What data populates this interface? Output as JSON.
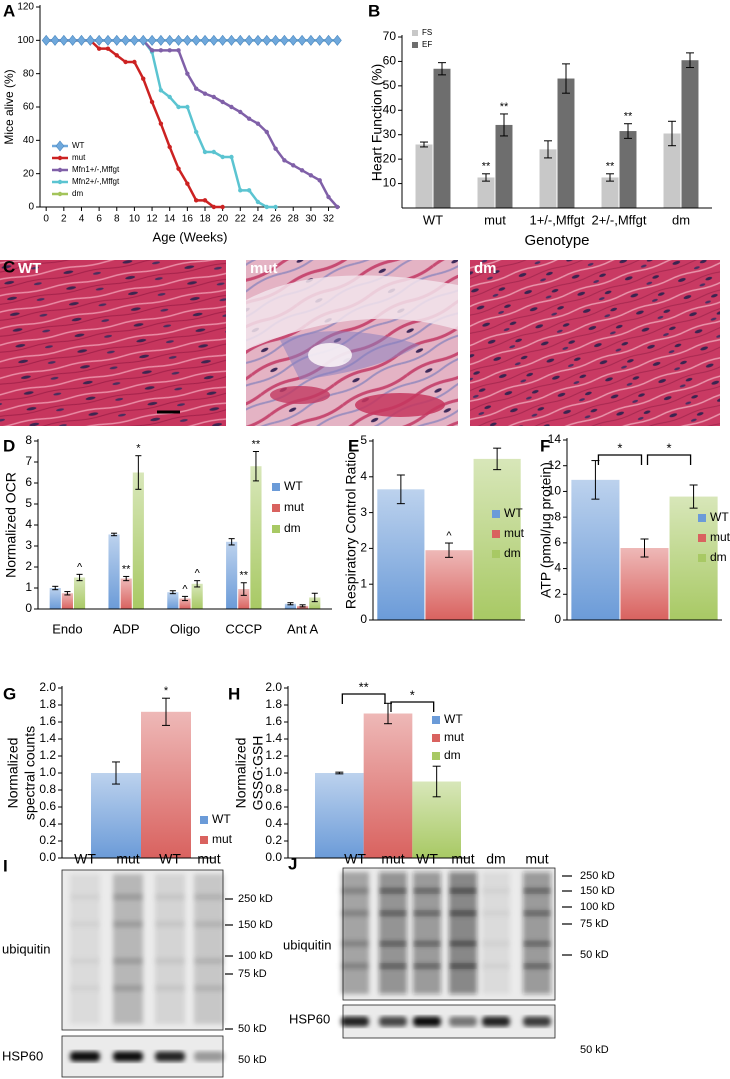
{
  "chart_data": [
    {
      "panel": "A",
      "type": "line",
      "ylabel": "Mice alive (%)",
      "xlabel": "Age (Weeks)",
      "x": [
        0,
        1,
        2,
        3,
        4,
        5,
        6,
        7,
        8,
        9,
        10,
        11,
        12,
        13,
        14,
        15,
        16,
        17,
        18,
        19,
        20,
        21,
        22,
        23,
        24,
        25,
        26,
        27,
        28,
        29,
        30,
        31,
        32,
        33
      ],
      "xlim": [
        -0.7,
        33.3
      ],
      "xticks": [
        0,
        2,
        4,
        6,
        8,
        10,
        12,
        14,
        16,
        18,
        20,
        22,
        24,
        26,
        28,
        30,
        32
      ],
      "ylim": [
        0,
        120
      ],
      "yticks": [
        0,
        20,
        40,
        60,
        80,
        100,
        120
      ],
      "series": [
        {
          "name": "WT",
          "color": "#6fa8dc",
          "marker": "diamond",
          "values": [
            100,
            100,
            100,
            100,
            100,
            100,
            100,
            100,
            100,
            100,
            100,
            100,
            100,
            100,
            100,
            100,
            100,
            100,
            100,
            100,
            100,
            100,
            100,
            100,
            100,
            100,
            100,
            100,
            100,
            100,
            100,
            100,
            100,
            100
          ]
        },
        {
          "name": "mut",
          "color": "#cc2222",
          "marker": "circle",
          "values": [
            100,
            100,
            100,
            100,
            100,
            100,
            95,
            95,
            91,
            87,
            87,
            77,
            63,
            50,
            36,
            23,
            14,
            4,
            4,
            0,
            0,
            null,
            null,
            null,
            null,
            null,
            null,
            null,
            null,
            null,
            null,
            null,
            null,
            null
          ]
        },
        {
          "name": "Mfn1+/-,Mffgt",
          "color": "#8060a8",
          "marker": "circle",
          "values": [
            100,
            100,
            100,
            100,
            100,
            100,
            100,
            100,
            100,
            100,
            100,
            100,
            94,
            94,
            94,
            94,
            80,
            71,
            68,
            66,
            63,
            60,
            57,
            53,
            50,
            45,
            35,
            28,
            25,
            22,
            19,
            16,
            6,
            0
          ]
        },
        {
          "name": "Mfn2+/-,Mffgt",
          "color": "#5bc4d1",
          "marker": "circle",
          "values": [
            100,
            100,
            100,
            100,
            100,
            100,
            100,
            100,
            100,
            100,
            100,
            100,
            93,
            70,
            66,
            60,
            60,
            45,
            33,
            33,
            30,
            30,
            10,
            10,
            3,
            0,
            0,
            null,
            null,
            null,
            null,
            null,
            null,
            null
          ]
        },
        {
          "name": "dm",
          "color": "#a3c45a",
          "marker": "circle",
          "values": [
            100,
            100,
            100,
            100,
            100,
            100,
            100,
            100,
            100,
            100,
            100,
            100,
            100,
            100,
            100,
            100,
            100,
            100,
            100,
            100,
            100,
            100,
            100,
            100,
            100,
            100,
            100,
            100,
            100,
            100,
            100,
            100,
            100,
            100
          ]
        }
      ]
    },
    {
      "panel": "B",
      "type": "bar",
      "ylabel": "Heart Function (%)",
      "xlabel": "Genotype",
      "categories": [
        "WT",
        "mut",
        "1+/-,Mffgt",
        "2+/-,Mffgt",
        "dm"
      ],
      "ylim": [
        0,
        70
      ],
      "yticks": [
        10,
        20,
        30,
        40,
        50,
        60,
        70
      ],
      "series": [
        {
          "name": "FS",
          "color": "#c8c8c8",
          "values": [
            26,
            12.5,
            24,
            12.5,
            30.5
          ],
          "errors": [
            1,
            1.5,
            3.5,
            1.5,
            5
          ],
          "annotations": [
            null,
            "**",
            null,
            "**",
            null
          ]
        },
        {
          "name": "EF",
          "color": "#6e6e6e",
          "values": [
            57,
            34,
            53,
            31.5,
            60.5
          ],
          "errors": [
            2.5,
            4.5,
            6,
            3,
            3
          ],
          "annotations": [
            null,
            "**",
            null,
            "**",
            null
          ]
        }
      ]
    },
    {
      "panel": "D",
      "type": "bar",
      "ylabel": "Normalized OCR",
      "categories": [
        "Endo",
        "ADP",
        "Oligo",
        "CCCP",
        "Ant A"
      ],
      "ylim": [
        0,
        8
      ],
      "yticks": [
        0,
        1,
        2,
        3,
        4,
        5,
        6,
        7,
        8
      ],
      "series": [
        {
          "name": "WT",
          "color": "#6b9bd8",
          "values": [
            1.0,
            3.55,
            0.8,
            3.2,
            0.25
          ],
          "errors": [
            0.08,
            0.06,
            0.07,
            0.15,
            0.05
          ]
        },
        {
          "name": "mut",
          "color": "#d9625f",
          "values": [
            0.75,
            1.45,
            0.5,
            0.95,
            0.15
          ],
          "errors": [
            0.08,
            0.1,
            0.1,
            0.3,
            0.05
          ],
          "annotations": [
            null,
            "**",
            "^",
            "**",
            null
          ]
        },
        {
          "name": "dm",
          "color": "#a8c964",
          "values": [
            1.5,
            6.5,
            1.2,
            6.8,
            0.55
          ],
          "errors": [
            0.15,
            0.8,
            0.15,
            0.7,
            0.2
          ],
          "annotations": [
            "^",
            "*",
            "^",
            "**",
            null
          ]
        }
      ]
    },
    {
      "panel": "E",
      "type": "bar",
      "ylabel": "Respiratory Control Ratio",
      "ylim": [
        0,
        5
      ],
      "yticks": [
        0,
        1,
        2,
        3,
        4,
        5
      ],
      "series": [
        {
          "name": "WT",
          "color": "#6b9bd8",
          "values": [
            3.65
          ],
          "errors": [
            0.4
          ]
        },
        {
          "name": "mut",
          "color": "#d9625f",
          "values": [
            1.95
          ],
          "errors": [
            0.2
          ],
          "annotations": [
            "^"
          ]
        },
        {
          "name": "dm",
          "color": "#a8c964",
          "values": [
            4.5
          ],
          "errors": [
            0.3
          ]
        }
      ]
    },
    {
      "panel": "F",
      "type": "bar",
      "ylabel": "ATP (pmol/μg protein)",
      "ylim": [
        0,
        14
      ],
      "yticks": [
        0,
        2,
        4,
        6,
        8,
        10,
        12,
        14
      ],
      "series": [
        {
          "name": "WT",
          "color": "#6b9bd8",
          "values": [
            10.9
          ],
          "errors": [
            1.5
          ]
        },
        {
          "name": "mut",
          "color": "#d9625f",
          "values": [
            5.6
          ],
          "errors": [
            0.7
          ]
        },
        {
          "name": "dm",
          "color": "#a8c964",
          "values": [
            9.6
          ],
          "errors": [
            0.9
          ]
        }
      ],
      "brackets": [
        {
          "between": [
            "WT",
            "mut"
          ],
          "label": "*"
        },
        {
          "between": [
            "mut",
            "dm"
          ],
          "label": "*"
        }
      ]
    },
    {
      "panel": "G",
      "type": "bar",
      "ylabel": [
        "Normalized",
        "spectral counts"
      ],
      "ylim": [
        0,
        2
      ],
      "yticks": [
        {
          "value": 0,
          "label": "0.0"
        },
        0.2,
        0.4,
        0.6,
        0.8,
        {
          "value": 1,
          "label": "1.0"
        },
        1.2,
        1.4,
        1.6,
        1.8,
        {
          "value": 2,
          "label": "2.0"
        }
      ],
      "series": [
        {
          "name": "WT",
          "color": "#6b9bd8",
          "values": [
            1.0
          ],
          "errors": [
            0.13
          ]
        },
        {
          "name": "mut",
          "color": "#d9625f",
          "values": [
            1.72
          ],
          "errors": [
            0.16
          ],
          "annotations": [
            "*"
          ]
        }
      ]
    },
    {
      "panel": "H",
      "type": "bar",
      "ylabel": [
        "Normalized",
        "GSSG:GSH"
      ],
      "ylim": [
        0,
        2
      ],
      "yticks": [
        {
          "value": 0,
          "label": "0.0"
        },
        0.2,
        0.4,
        0.6,
        0.8,
        {
          "value": 1,
          "label": "1.0"
        },
        1.2,
        1.4,
        1.6,
        1.8,
        {
          "value": 2,
          "label": "2.0"
        }
      ],
      "series": [
        {
          "name": "WT",
          "color": "#6b9bd8",
          "values": [
            1.0
          ],
          "errors": [
            0.01
          ]
        },
        {
          "name": "mut",
          "color": "#d9625f",
          "values": [
            1.7
          ],
          "errors": [
            0.12
          ]
        },
        {
          "name": "dm",
          "color": "#a8c964",
          "values": [
            0.9
          ],
          "errors": [
            0.18
          ]
        }
      ],
      "brackets": [
        {
          "between": [
            "WT",
            "mut"
          ],
          "label": "**"
        },
        {
          "between": [
            "mut",
            "dm"
          ],
          "label": "*"
        }
      ]
    }
  ],
  "histology": {
    "panel": "C",
    "images": [
      {
        "label": "WT"
      },
      {
        "label": "mut"
      },
      {
        "label": "dm"
      }
    ]
  },
  "blots": [
    {
      "panel": "I",
      "lanes": [
        "WT",
        "mut",
        "WT",
        "mut"
      ],
      "rows": [
        {
          "label": "ubiquitin",
          "markers": [
            "250 kD",
            "150 kD",
            "100 kD",
            "75 kD",
            "50 kD"
          ]
        },
        {
          "label": "HSP60",
          "markers": [
            "50 kD"
          ]
        }
      ]
    },
    {
      "panel": "J",
      "lanes": [
        "WT",
        "mut",
        "WT",
        "mut",
        "dm",
        "mut"
      ],
      "rows": [
        {
          "label": "ubiquitin",
          "markers": [
            "250 kD",
            "150 kD",
            "100 kD",
            "75 kD",
            "50 kD"
          ]
        },
        {
          "label": "HSP60",
          "markers": [
            "50 kD"
          ]
        }
      ]
    }
  ]
}
